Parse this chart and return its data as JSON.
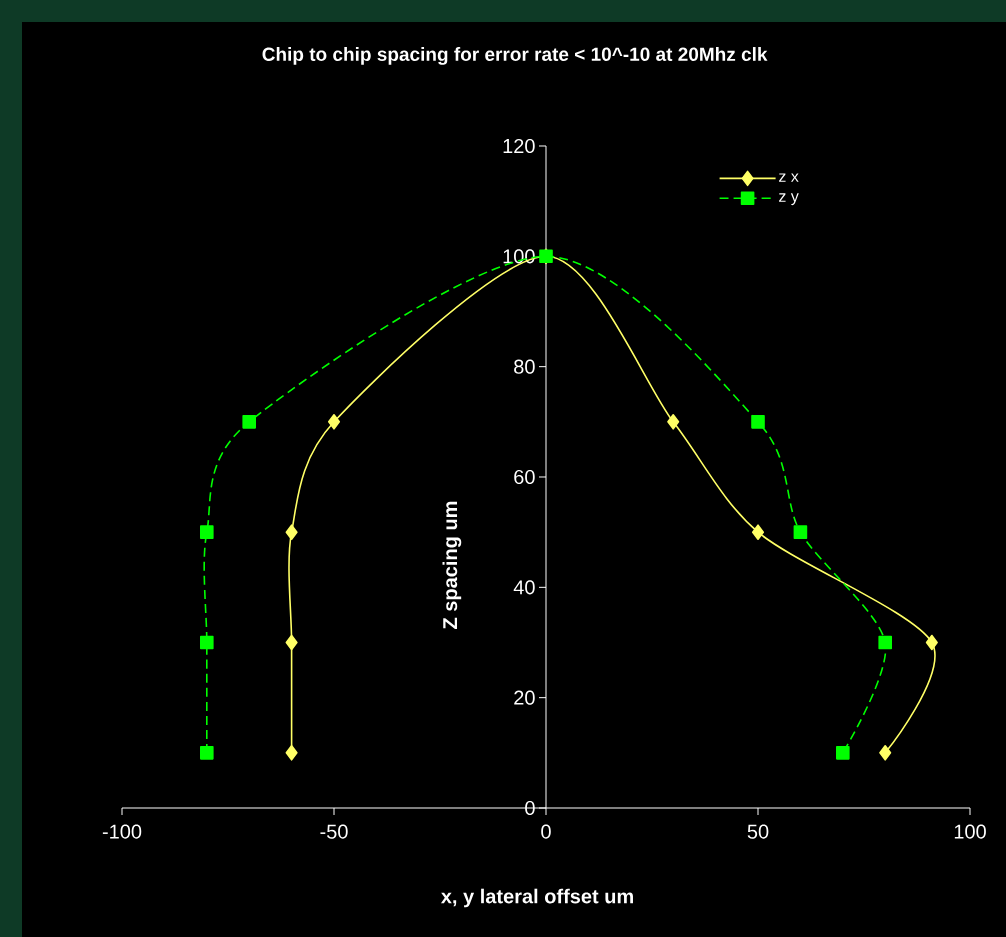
{
  "chart_data": {
    "type": "line",
    "title": "Chip to chip spacing for error rate < 10^-10 at 20Mhz clk",
    "xlabel": "x, y lateral offset um",
    "ylabel": "Z spacing um",
    "xlim": [
      -100,
      100
    ],
    "ylim": [
      0,
      120
    ],
    "xticks": [
      -100,
      -50,
      0,
      50,
      100
    ],
    "yticks": [
      0,
      20,
      40,
      60,
      80,
      100,
      120
    ],
    "legend": "top right",
    "grid": false,
    "series": [
      {
        "name": "z x",
        "color": "#ffff66",
        "marker": "diamond",
        "line_style": "solid",
        "x": [
          -60,
          -60,
          -60,
          -50,
          0,
          30,
          50,
          91,
          80
        ],
        "values": [
          10,
          30,
          50,
          70,
          100,
          70,
          50,
          30,
          10
        ]
      },
      {
        "name": "z y",
        "color": "#00ff00",
        "marker": "square",
        "line_style": "dashed",
        "x": [
          -80,
          -80,
          -80,
          -70,
          0,
          50,
          60,
          80,
          70
        ],
        "values": [
          10,
          30,
          50,
          70,
          100,
          70,
          50,
          30,
          10
        ]
      }
    ]
  }
}
